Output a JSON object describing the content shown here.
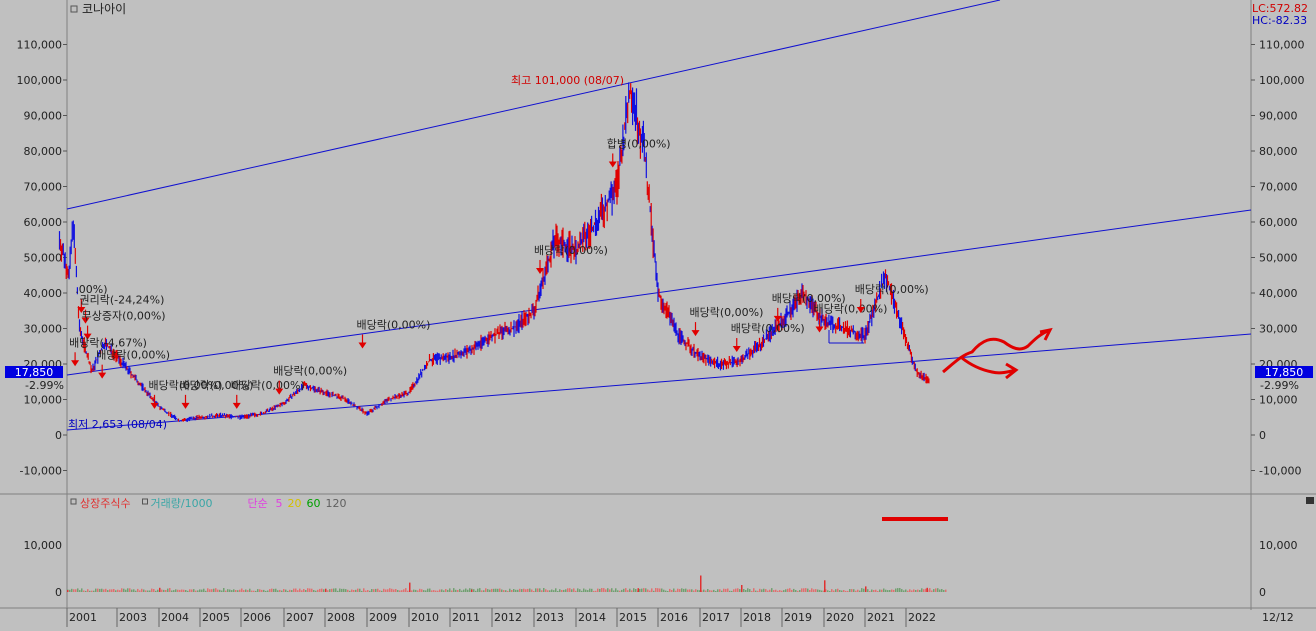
{
  "title": "코나아이",
  "lc_label": "LC:572.82",
  "hc_label": "HC:-82.33",
  "price_badge": "17,850",
  "change_pct": "-2.99%",
  "price_axis_ticks": [
    "110,000",
    "100,000",
    "90,000",
    "80,000",
    "70,000",
    "60,000",
    "50,000",
    "40,000",
    "30,000",
    "20,000",
    "10,000",
    "0",
    "-10,000"
  ],
  "volume_axis_ticks": [
    "10,000",
    "0"
  ],
  "volume_legend": [
    {
      "label": "상장주식수",
      "color": "#e03030"
    },
    {
      "label": "거래량/1000",
      "color": "#3aa6a6"
    },
    {
      "label": "단순",
      "color": "#e040e0"
    },
    {
      "label": "5",
      "color": "#e040e0"
    },
    {
      "label": "20",
      "color": "#d4c000"
    },
    {
      "label": "60",
      "color": "#00a000"
    },
    {
      "label": "120",
      "color": "#606060"
    }
  ],
  "period_label": "12/12",
  "high_label": "최고 101,000 (08/07)",
  "low_label": "최저 2,653 (08/04)",
  "annotations": [
    {
      "text": ".00%)",
      "x": "2001-04",
      "y": 40000
    },
    {
      "text": "권리락(-24,24%)",
      "x": "2001-06",
      "y": 37000
    },
    {
      "text": "무상증자(0,00%)",
      "x": "2001-07",
      "y": 32500
    },
    {
      "text": "배당락(-4,67%)",
      "x": "2001-01",
      "y": 25000
    },
    {
      "text": "배당락(0,00%)",
      "x": "2002-02",
      "y": 21500
    },
    {
      "text": "배당락(0,00%)",
      "x": "2003-09",
      "y": 13000
    },
    {
      "text": "배당락(0,00%)",
      "x": "2004-06",
      "y": 13000
    },
    {
      "text": "배당락(0,00%)",
      "x": "2005-09",
      "y": 13000
    },
    {
      "text": "배당락(0,00%)",
      "x": "2006-09",
      "y": 17000
    },
    {
      "text": "배당락(0,00%)",
      "x": "2008-09",
      "y": 30000
    },
    {
      "text": "배당락(0,00%)",
      "x": "2013-00",
      "y": 51000
    },
    {
      "text": "합병(0,00%)",
      "x": "2014-09",
      "y": 81000
    },
    {
      "text": "배당락(0,00%)",
      "x": "2016-09",
      "y": 33500
    },
    {
      "text": "배당락(0,00%)",
      "x": "2017-09",
      "y": 29000
    },
    {
      "text": "배당락(0,00%)",
      "x": "2018-09",
      "y": 37500
    },
    {
      "text": "배당락(0,00%)",
      "x": "2019-09",
      "y": 34500
    },
    {
      "text": "배당락(0,00%)",
      "x": "2020-09",
      "y": 40000
    }
  ],
  "chart_data": {
    "type": "line",
    "title": "코나아이",
    "x_tick_labels": [
      "2001",
      "2003",
      "2004",
      "2005",
      "2006",
      "2007",
      "2008",
      "2009",
      "2010",
      "2011",
      "2012",
      "2013",
      "2014",
      "2015",
      "2016",
      "2017",
      "2018",
      "2019",
      "2020",
      "2021",
      "2022"
    ],
    "ylim": [
      -15000,
      120000
    ],
    "y_tick_values": [
      110000,
      100000,
      90000,
      80000,
      70000,
      60000,
      50000,
      40000,
      30000,
      20000,
      10000,
      0,
      -10000
    ],
    "series": [
      {
        "x": [
          "2000-10",
          "2001-01",
          "2001-03",
          "2001-06",
          "2002-00",
          "2002-06",
          "2003-00",
          "2003-06",
          "2004-00",
          "2004-06",
          "2005-00",
          "2005-06",
          "2006-00",
          "2006-06",
          "2007-00",
          "2007-06",
          "2008-00",
          "2008-06",
          "2009-00",
          "2009-06",
          "2010-00",
          "2010-06",
          "2011-00",
          "2011-06",
          "2012-00",
          "2012-06",
          "2013-00",
          "2013-06",
          "2014-00",
          "2014-06",
          "2015-00",
          "2015-04",
          "2015-08",
          "2016-00",
          "2016-06",
          "2017-00",
          "2017-06",
          "2018-00",
          "2018-06",
          "2019-00",
          "2019-06",
          "2020-00",
          "2020-06",
          "2021-00",
          "2021-06",
          "2021-11",
          "2022-03",
          "2022-07"
        ],
        "y": [
          55000,
          45000,
          60000,
          30000,
          18000,
          26000,
          22000,
          15000,
          8000,
          4000,
          5000,
          5500,
          5000,
          6000,
          9000,
          14000,
          12000,
          10000,
          6000,
          10000,
          12000,
          21000,
          22000,
          24000,
          28000,
          30000,
          35000,
          55000,
          52000,
          60000,
          70000,
          98000,
          80000,
          40000,
          28000,
          22000,
          20000,
          21000,
          26000,
          32000,
          40000,
          32000,
          30000,
          28000,
          45000,
          30000,
          18000,
          15000
        ]
      }
    ],
    "volume_spikes": [
      {
        "x": "2001-00",
        "value": 400
      },
      {
        "x": "2004-00",
        "value": 900
      },
      {
        "x": "2008-00",
        "value": 700
      },
      {
        "x": "2010-00",
        "value": 2000
      },
      {
        "x": "2011-06",
        "value": 500
      },
      {
        "x": "2015-06",
        "value": 800
      },
      {
        "x": "2017-00",
        "value": 3500
      },
      {
        "x": "2018-00",
        "value": 1500
      },
      {
        "x": "2020-00",
        "value": 2500
      },
      {
        "x": "2021-00",
        "value": 1200
      },
      {
        "x": "2022-06",
        "value": 900
      }
    ]
  }
}
